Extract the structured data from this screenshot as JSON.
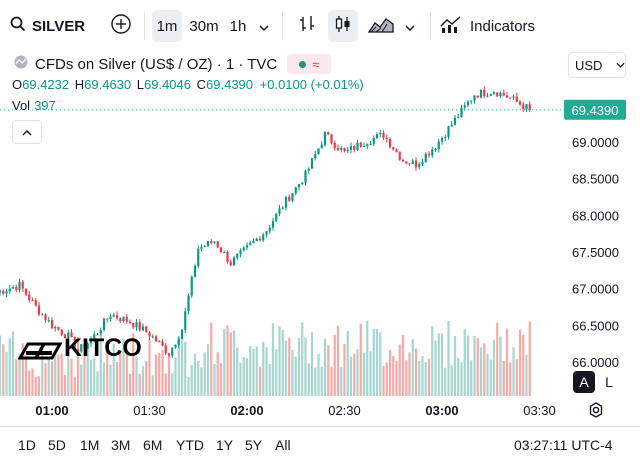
{
  "toolbar": {
    "symbol": "SILVER",
    "intervals": [
      "1m",
      "30m",
      "1h"
    ],
    "active_interval": "1m",
    "indicators_label": "Indicators"
  },
  "legend": {
    "title": "CFDs on Silver (US$ / OZ) · 1 · TVC",
    "open_label": "O",
    "open": "69.4232",
    "high_label": "H",
    "high": "69.4630",
    "low_label": "L",
    "low": "69.4046",
    "close_label": "C",
    "close": "69.4390",
    "change": "+0.0100 (+0.01%)",
    "vol_label": "Vol",
    "vol_value": "397"
  },
  "currency": "USD",
  "brand": "KITCO",
  "scale_buttons": {
    "auto": "A",
    "log": "L"
  },
  "range_buttons": [
    "1D",
    "5D",
    "1M",
    "3M",
    "6M",
    "YTD",
    "1Y",
    "5Y",
    "All"
  ],
  "clock": "03:27:11 UTC-4",
  "colors": {
    "up": "#089981",
    "down": "#f23645",
    "vol_up": "#a5d6cf",
    "vol_down": "#f7a9a7",
    "accent": "#22ab94"
  },
  "chart_data": {
    "type": "candlestick",
    "x_ticks": [
      "01:00",
      "01:30",
      "02:00",
      "02:30",
      "03:00",
      "03:30"
    ],
    "y_ticks": [
      "66.0000",
      "66.5000",
      "67.0000",
      "67.5000",
      "68.0000",
      "68.5000",
      "69.0000"
    ],
    "ylim": [
      65.85,
      69.95
    ],
    "last_price": "69.4390",
    "approx_path": [
      [
        "00:43",
        66.95
      ],
      [
        "00:50",
        67.05
      ],
      [
        "00:55",
        66.75
      ],
      [
        "01:00",
        66.5
      ],
      [
        "01:05",
        66.35
      ],
      [
        "01:08",
        66.15
      ],
      [
        "01:12",
        66.3
      ],
      [
        "01:18",
        66.65
      ],
      [
        "01:24",
        66.55
      ],
      [
        "01:30",
        66.38
      ],
      [
        "01:36",
        66.12
      ],
      [
        "01:40",
        66.45
      ],
      [
        "01:45",
        67.55
      ],
      [
        "01:50",
        67.65
      ],
      [
        "01:55",
        67.35
      ],
      [
        "02:00",
        67.55
      ],
      [
        "02:06",
        67.8
      ],
      [
        "02:12",
        68.2
      ],
      [
        "02:18",
        68.55
      ],
      [
        "02:24",
        69.1
      ],
      [
        "02:30",
        68.85
      ],
      [
        "02:36",
        69.0
      ],
      [
        "02:42",
        69.1
      ],
      [
        "02:48",
        68.75
      ],
      [
        "02:52",
        68.7
      ],
      [
        "02:58",
        68.95
      ],
      [
        "03:04",
        69.3
      ],
      [
        "03:10",
        69.65
      ],
      [
        "03:16",
        69.7
      ],
      [
        "03:21",
        69.6
      ],
      [
        "03:27",
        69.44
      ]
    ]
  }
}
